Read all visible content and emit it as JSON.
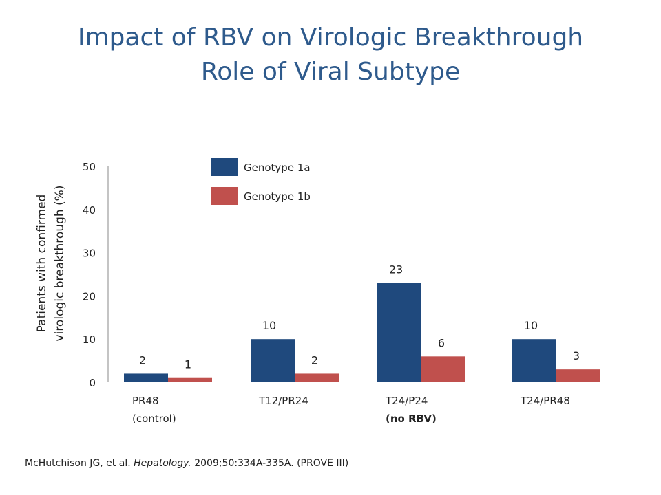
{
  "slide": {
    "title_line1": "Impact of RBV on Virologic Breakthrough",
    "title_line2": "Role of Viral Subtype"
  },
  "chart_data": {
    "type": "bar",
    "title": "",
    "ylabel": [
      "Patients with confirmed",
      "virologic breakthrough (%)"
    ],
    "ylim": [
      0,
      50
    ],
    "yticks": [
      0,
      10,
      20,
      30,
      40,
      50
    ],
    "grid": false,
    "legend_position": "top",
    "categories": [
      [
        "PR48",
        "(control)"
      ],
      [
        "T12/PR24"
      ],
      [
        "T24/P24",
        "(no RBV)"
      ],
      [
        "T24/PR48"
      ]
    ],
    "category_bold_second_line": [
      false,
      false,
      true,
      false
    ],
    "series": [
      {
        "name": "Genotype 1a",
        "color": "#1F497D",
        "values": [
          2,
          10,
          23,
          10
        ]
      },
      {
        "name": "Genotype 1b",
        "color": "#C0504D",
        "values": [
          1,
          2,
          6,
          3
        ]
      }
    ]
  },
  "citation": {
    "authors": "McHutchison JG, et al. ",
    "journal": "Hepatology.",
    "details": " 2009;50:334A-335A. (PROVE III)"
  }
}
